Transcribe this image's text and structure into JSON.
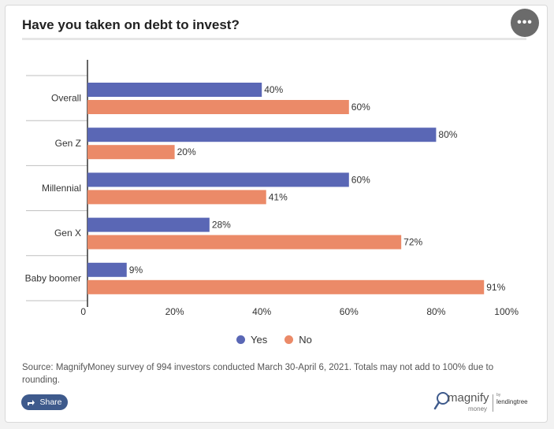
{
  "header": {
    "title": "Have you taken on debt to invest?",
    "menu_label": "•••"
  },
  "chart_data": {
    "type": "bar",
    "orientation": "horizontal",
    "categories": [
      "Overall",
      "Gen Z",
      "Millennial",
      "Gen X",
      "Baby boomer"
    ],
    "series": [
      {
        "name": "Yes",
        "color": "#5a67b5",
        "values": [
          40,
          80,
          60,
          28,
          9
        ],
        "labels": [
          "40%",
          "80%",
          "60%",
          "28%",
          "9%"
        ]
      },
      {
        "name": "No",
        "color": "#eb8a68",
        "values": [
          60,
          20,
          41,
          72,
          91
        ],
        "labels": [
          "60%",
          "20%",
          "41%",
          "72%",
          "91%"
        ]
      }
    ],
    "xlim": [
      0,
      100
    ],
    "xticks": [
      0,
      20,
      40,
      60,
      80,
      100
    ],
    "xtick_labels": [
      "0",
      "20%",
      "40%",
      "60%",
      "80%",
      "100%"
    ],
    "grid": false,
    "legend_position": "bottom-center"
  },
  "footer": {
    "source": "Source: MagnifyMoney survey of 994 investors conducted March 30-April 6, 2021. Totals may not add to 100% due to rounding.",
    "share_label": "Share",
    "logo": {
      "magnify": "magnify",
      "money": "money",
      "by": "by",
      "lendingtree": "lendingtree"
    }
  }
}
